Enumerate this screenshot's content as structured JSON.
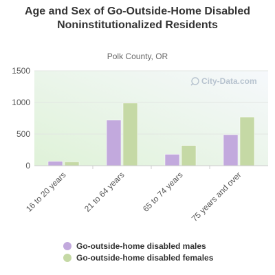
{
  "chart_data": {
    "type": "bar",
    "title": "Age and Sex of Go-Outside-Home Disabled Noninstitutionalized Residents",
    "subtitle": "Polk County, OR",
    "categories": [
      "16 to 20 years",
      "21 to 64 years",
      "65 to 74 years",
      "75 years and over"
    ],
    "series": [
      {
        "name": "Go-outside-home disabled males",
        "values": [
          70,
          720,
          180,
          490
        ],
        "color": "#c2a9dd"
      },
      {
        "name": "Go-outside-home disabled females",
        "values": [
          60,
          990,
          320,
          770
        ],
        "color": "#c5d9a5"
      }
    ],
    "ylim": [
      0,
      1500
    ],
    "yticks": [
      0,
      500,
      1000,
      1500
    ],
    "grid": true,
    "legend_position": "bottom",
    "watermark": "City-Data.com"
  }
}
